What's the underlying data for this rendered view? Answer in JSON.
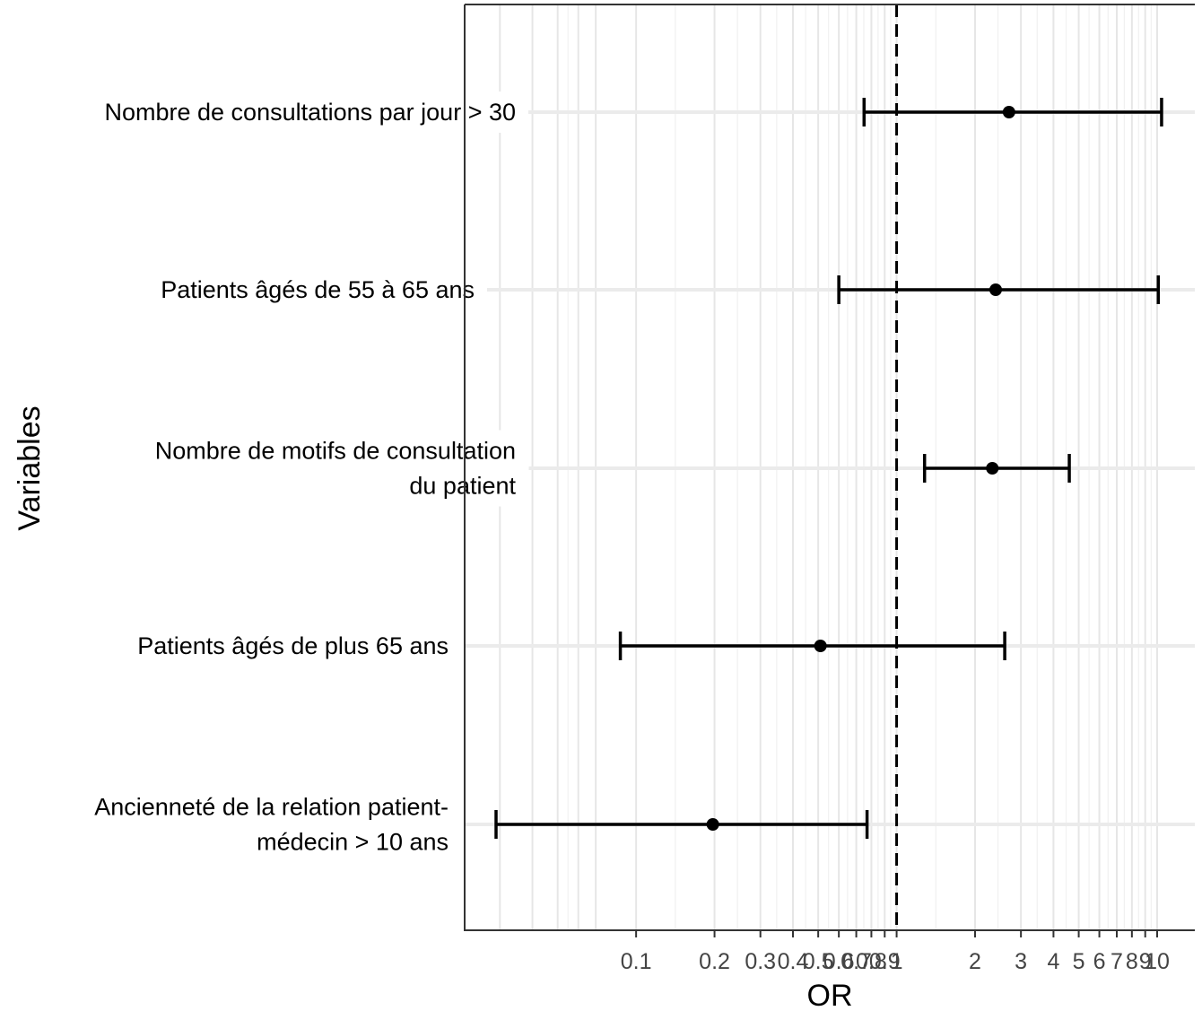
{
  "chart_data": {
    "type": "scatter",
    "subtype": "forest-plot",
    "title": "",
    "xlabel": "OR",
    "ylabel": "Variables",
    "x_scale": "log10",
    "xlim": [
      0.029,
      12
    ],
    "reference_line": {
      "x": 1,
      "style": "dashed"
    },
    "grid": true,
    "x_ticks": [
      {
        "value": 0.1,
        "label": "0.1"
      },
      {
        "value": 0.2,
        "label": "0.2"
      },
      {
        "value": 0.3,
        "label": "0.3"
      },
      {
        "value": 0.4,
        "label": "0.4"
      },
      {
        "value": 0.5,
        "label": "0.5"
      },
      {
        "value": 0.6,
        "label": "0.6"
      },
      {
        "value": 0.7,
        "label": "0.7"
      },
      {
        "value": 0.8,
        "label": "0.8"
      },
      {
        "value": 0.9,
        "label": "0.9"
      },
      {
        "value": 1,
        "label": "1"
      },
      {
        "value": 2,
        "label": "2"
      },
      {
        "value": 3,
        "label": "3"
      },
      {
        "value": 4,
        "label": "4"
      },
      {
        "value": 5,
        "label": "5"
      },
      {
        "value": 6,
        "label": "6"
      },
      {
        "value": 7,
        "label": "7"
      },
      {
        "value": 8,
        "label": "8"
      },
      {
        "value": 9,
        "label": "9"
      },
      {
        "value": 10,
        "label": "10"
      }
    ],
    "rows": [
      {
        "label_lines": [
          "Nombre de consultations par jour > 30"
        ],
        "or": 2.7,
        "lower": 0.75,
        "upper": 10.4
      },
      {
        "label_lines": [
          "Patients âgés de 55 à 65 ans"
        ],
        "or": 2.4,
        "lower": 0.6,
        "upper": 10.1
      },
      {
        "label_lines": [
          "Nombre de motifs de consultation",
          "du patient"
        ],
        "or": 2.33,
        "lower": 1.28,
        "upper": 4.6
      },
      {
        "label_lines": [
          "Patients âgés de plus 65 ans"
        ],
        "or": 0.51,
        "lower": 0.087,
        "upper": 2.6
      },
      {
        "label_lines": [
          "Ancienneté de la relation patient-",
          "médecin > 10 ans"
        ],
        "or": 0.197,
        "lower": 0.029,
        "upper": 0.77
      }
    ]
  }
}
